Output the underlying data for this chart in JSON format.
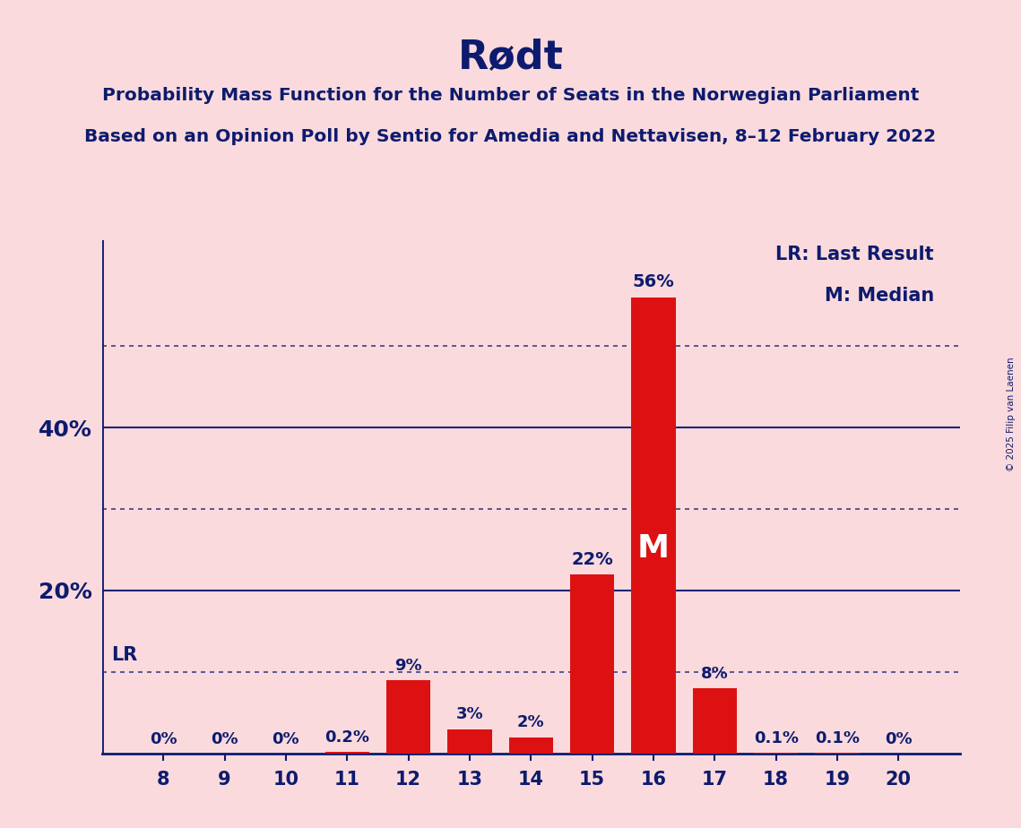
{
  "title": "Rødt",
  "subtitle1": "Probability Mass Function for the Number of Seats in the Norwegian Parliament",
  "subtitle2": "Based on an Opinion Poll by Sentio for Amedia and Nettavisen, 8–12 February 2022",
  "seats": [
    8,
    9,
    10,
    11,
    12,
    13,
    14,
    15,
    16,
    17,
    18,
    19,
    20
  ],
  "probabilities": [
    0.0,
    0.0,
    0.0,
    0.2,
    9.0,
    3.0,
    2.0,
    22.0,
    56.0,
    8.0,
    0.1,
    0.1,
    0.0
  ],
  "labels": [
    "0%",
    "0%",
    "0%",
    "0.2%",
    "9%",
    "3%",
    "2%",
    "22%",
    "56%",
    "8%",
    "0.1%",
    "0.1%",
    "0%"
  ],
  "bar_color": "#DD1111",
  "background_color": "#FADADD",
  "text_color": "#0D1B6E",
  "median_seat": 16,
  "lr_y": 10.0,
  "legend_lr": "LR: Last Result",
  "legend_m": "M: Median",
  "copyright": "© 2025 Filip van Laenen",
  "dotted_gridlines": [
    10,
    30,
    50
  ],
  "solid_gridlines": [
    20,
    40
  ],
  "xlim": [
    7.0,
    21.0
  ],
  "ylim": [
    0,
    63
  ],
  "bar_width": 0.72
}
